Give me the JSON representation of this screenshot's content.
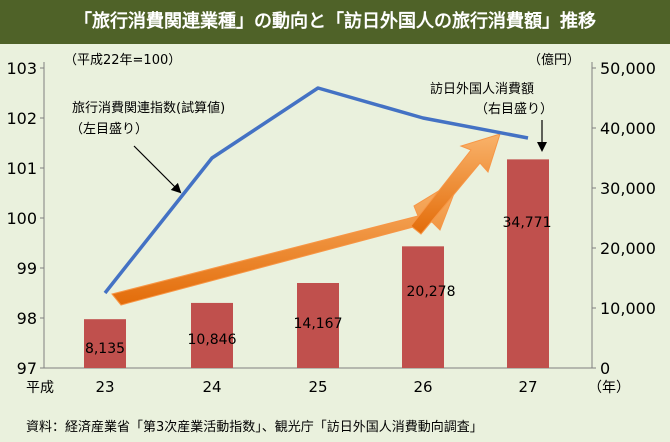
{
  "chart_title": "「旅行消費関連業種」の動向と「訪日外国人の旅行消費額」推移",
  "source_note": "資料：経済産業省「第3次産業活動指数」、観光庁「訪日外国人消費動向調査」",
  "chart_data": {
    "type": "bar+line",
    "categories": [
      "23",
      "24",
      "25",
      "26",
      "27"
    ],
    "x_prefix": "平成",
    "x_unit": "（年）",
    "left_axis": {
      "unit_label": "（平成22年=100）",
      "range": [
        97,
        103
      ],
      "ticks": [
        "97",
        "98",
        "99",
        "100",
        "101",
        "102",
        "103"
      ]
    },
    "right_axis": {
      "unit_label": "（億円）",
      "range": [
        0,
        50000
      ],
      "ticks": [
        "0",
        "10,000",
        "20,000",
        "30,000",
        "40,000",
        "50,000"
      ]
    },
    "series": [
      {
        "name": "訪日外国人消費額（右目盛り）",
        "type": "bar",
        "axis": "right",
        "color": "#c0504d",
        "values": [
          8135,
          10846,
          14167,
          20278,
          34771
        ],
        "labels": [
          "8,135",
          "10,846",
          "14,167",
          "20,278",
          "34,771"
        ]
      },
      {
        "name": "旅行消費関連指数(試算値)（左目盛り）",
        "type": "line",
        "axis": "left",
        "color": "#4472c4",
        "values": [
          98.5,
          101.2,
          102.6,
          102.0,
          101.6
        ]
      }
    ],
    "annotations": {
      "line_label_1": "旅行消費関連指数(試算値)",
      "line_label_2": "（左目盛り）",
      "bar_label_1": "訪日外国人消費額",
      "bar_label_2": "（右目盛り）"
    },
    "grid": false
  }
}
